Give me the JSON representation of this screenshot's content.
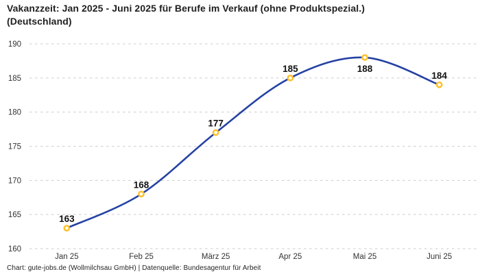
{
  "title": "Vakanzzeit: Jan 2025 - Juni 2025 für Berufe im Verkauf (ohne Produktspezial.) (Deutschland)",
  "footer": "Chart: gute-jobs.de (Wollmilchsau GmbH) | Datenquelle: Bundesagentur für Arbeit",
  "chart_data": {
    "type": "line",
    "title": "Vakanzzeit: Jan 2025 - Juni 2025 für Berufe im Verkauf (ohne Produktspezial.) (Deutschland)",
    "categories": [
      "Jan 25",
      "Feb 25",
      "März 25",
      "Apr 25",
      "Mai 25",
      "Juni 25"
    ],
    "values": [
      163,
      168,
      177,
      185,
      188,
      184
    ],
    "value_labels": [
      "163",
      "168",
      "177",
      "185",
      "188",
      "184"
    ],
    "value_label_positions": [
      "above",
      "above",
      "above",
      "above",
      "below",
      "above"
    ],
    "xlabel": "",
    "ylabel": "",
    "ylim": [
      160,
      190
    ],
    "ytick_step": 5,
    "yticks": [
      160,
      165,
      170,
      175,
      180,
      185,
      190
    ],
    "grid": "horizontal-dashed",
    "legend": "none",
    "curve": "smooth-spline",
    "colors": {
      "line": "#2541a3",
      "marker_ring": "#ffc027",
      "marker_fill": "#ffffff",
      "grid": "#cccccc",
      "axis_text": "#333333",
      "value_label": "#111111",
      "background": "#ffffff"
    }
  }
}
